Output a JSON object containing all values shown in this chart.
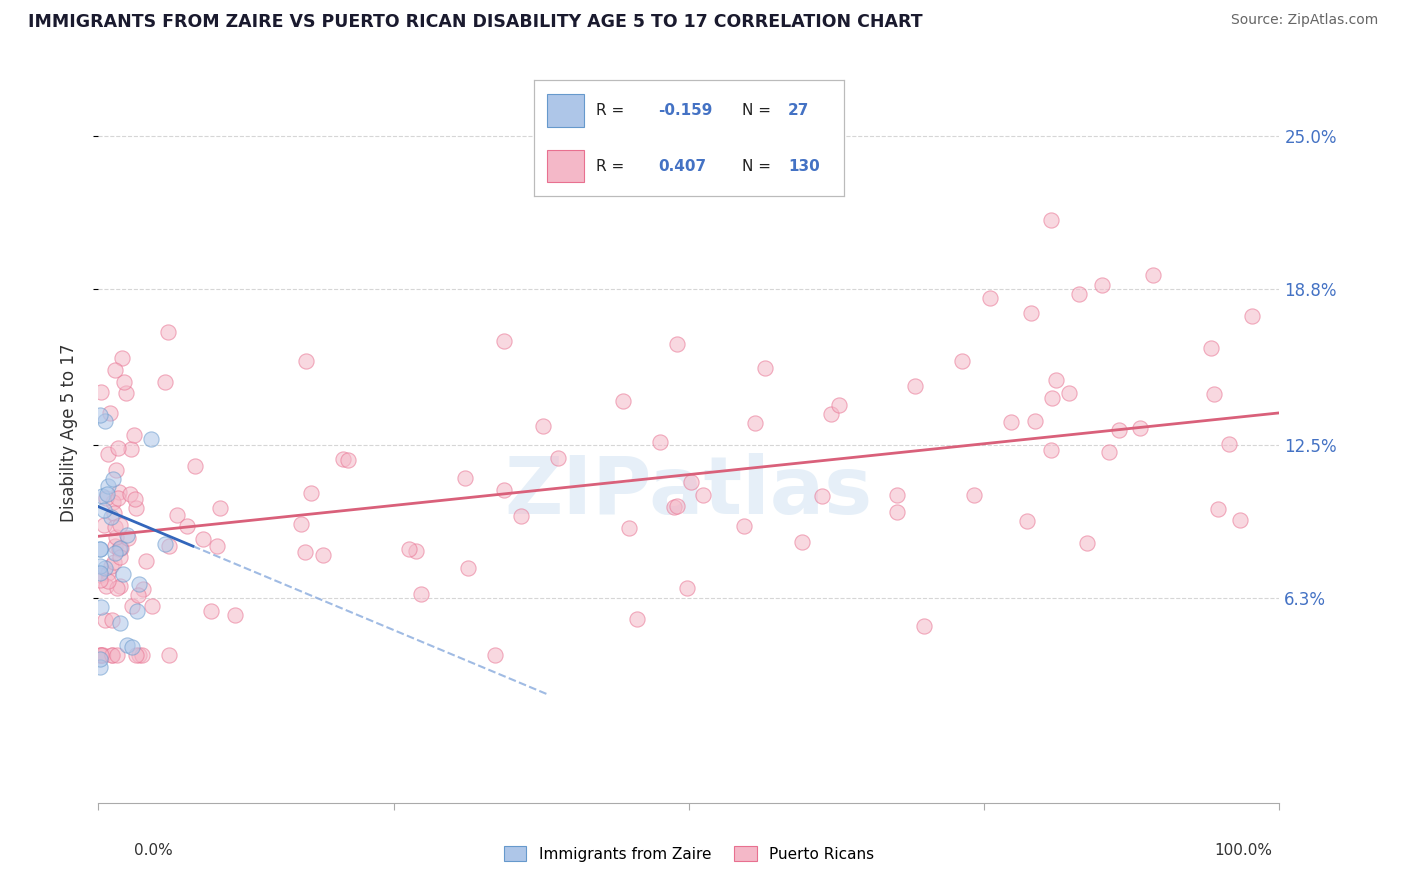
{
  "title": "IMMIGRANTS FROM ZAIRE VS PUERTO RICAN DISABILITY AGE 5 TO 17 CORRELATION CHART",
  "source": "Source: ZipAtlas.com",
  "ylabel": "Disability Age 5 to 17",
  "ytick_labels": [
    "6.3%",
    "12.5%",
    "18.8%",
    "25.0%"
  ],
  "ytick_values": [
    0.063,
    0.125,
    0.188,
    0.25
  ],
  "legend_entries": [
    {
      "label": "Immigrants from Zaire",
      "R": -0.159,
      "N": 27,
      "color": "#aec6e8"
    },
    {
      "label": "Puerto Ricans",
      "R": 0.407,
      "N": 130,
      "color": "#f4b8c8"
    }
  ],
  "scatter_size": 120,
  "scatter_alpha": 0.55,
  "blue_color": "#aec6e8",
  "blue_edge": "#6699cc",
  "pink_color": "#f4b8c8",
  "pink_edge": "#e87090",
  "watermark": "ZIPatlas",
  "background_color": "#ffffff",
  "grid_color": "#cccccc",
  "xlim": [
    0.0,
    1.0
  ],
  "ylim": [
    -0.02,
    0.28
  ]
}
